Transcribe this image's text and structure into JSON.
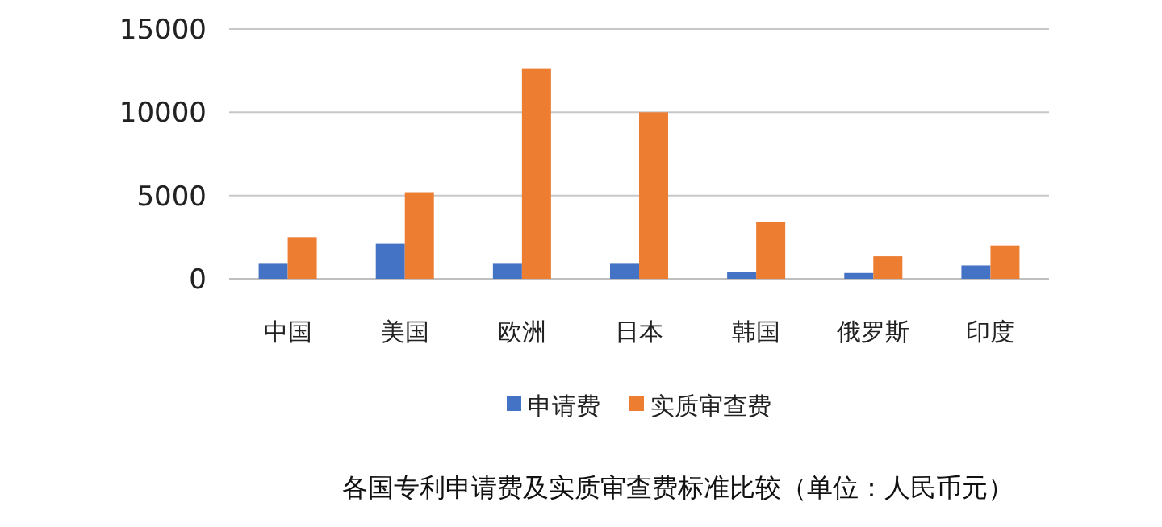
{
  "chart_data": {
    "type": "bar",
    "title": "各国专利申请费及实质审查费标准比较（单位：人民币元）",
    "categories": [
      "中国",
      "美国",
      "欧洲",
      "日本",
      "韩国",
      "俄罗斯",
      "印度"
    ],
    "series": [
      {
        "name": "申请费",
        "color": "#4472c4",
        "values": [
          900,
          2100,
          900,
          900,
          400,
          350,
          800
        ]
      },
      {
        "name": "实质审查费",
        "color": "#ed7d31",
        "values": [
          2500,
          5200,
          12600,
          10000,
          3400,
          1350,
          2000
        ]
      }
    ],
    "ylim": [
      0,
      15000
    ],
    "yticks": [
      0,
      5000,
      10000,
      15000
    ],
    "grid": "y",
    "legend": "bottom"
  }
}
